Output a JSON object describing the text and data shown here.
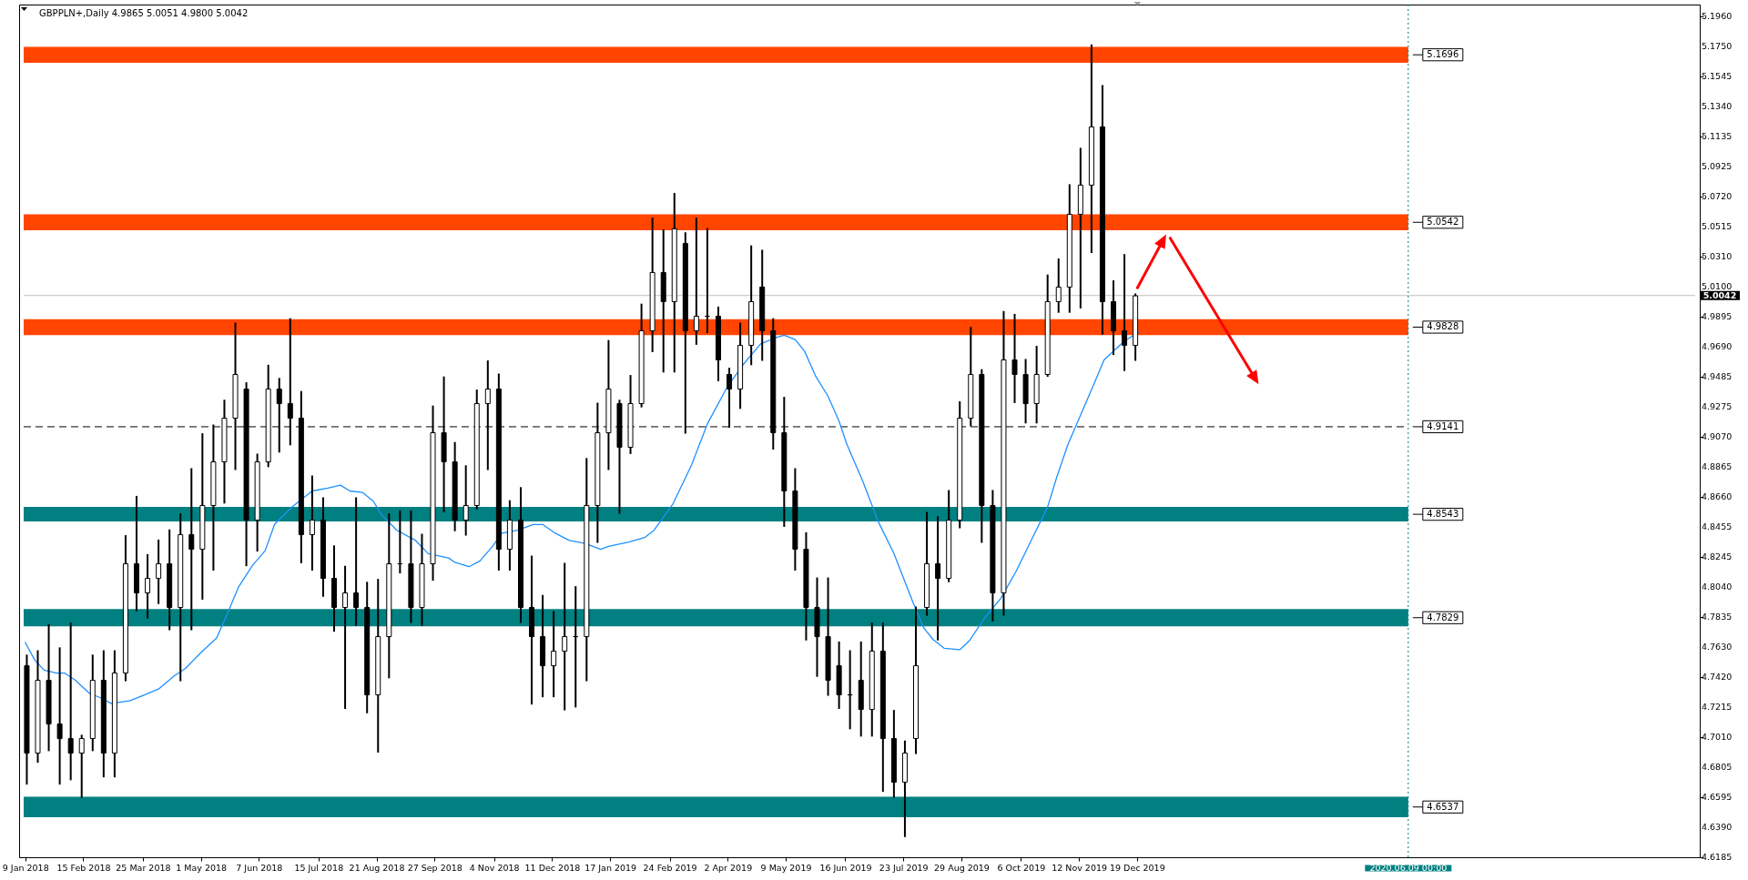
{
  "chart_data": {
    "type": "candlestick",
    "title": "GBPPLN+,Daily 4.9865 5.0051 4.9800 5.0042",
    "color": "#000000",
    "x": [
      "2018-01-10",
      "2018-01-17",
      "2018-01-24",
      "2018-01-31",
      "2018-02-07",
      "2018-02-14",
      "2018-02-21",
      "2018-02-28",
      "2018-03-07",
      "2018-03-14",
      "2018-03-21",
      "2018-03-28",
      "2018-04-04",
      "2018-04-11",
      "2018-04-18",
      "2018-04-25",
      "2018-05-02",
      "2018-05-09",
      "2018-05-16",
      "2018-05-23",
      "2018-05-30",
      "2018-06-06",
      "2018-06-13",
      "2018-06-20",
      "2018-06-27",
      "2018-07-04",
      "2018-07-11",
      "2018-07-18",
      "2018-07-25",
      "2018-08-01",
      "2018-08-08",
      "2018-08-15",
      "2018-08-22",
      "2018-08-29",
      "2018-09-05",
      "2018-09-12",
      "2018-09-19",
      "2018-09-26",
      "2018-10-03",
      "2018-10-10",
      "2018-10-17",
      "2018-10-24",
      "2018-10-31",
      "2018-11-07",
      "2018-11-14",
      "2018-11-21",
      "2018-11-28",
      "2018-12-05",
      "2018-12-12",
      "2018-12-19",
      "2018-12-26",
      "2019-01-02",
      "2019-01-09",
      "2019-01-16",
      "2019-01-23",
      "2019-01-30",
      "2019-02-06",
      "2019-02-13",
      "2019-02-20",
      "2019-02-27",
      "2019-03-06",
      "2019-03-13",
      "2019-03-20",
      "2019-03-27",
      "2019-04-03",
      "2019-04-10",
      "2019-04-17",
      "2019-04-24",
      "2019-05-01",
      "2019-05-08",
      "2019-05-15",
      "2019-05-22",
      "2019-05-29",
      "2019-06-05",
      "2019-06-12",
      "2019-06-19",
      "2019-06-26",
      "2019-07-03",
      "2019-07-10",
      "2019-07-17",
      "2019-07-24",
      "2019-07-31",
      "2019-08-07",
      "2019-08-14",
      "2019-08-21",
      "2019-08-28",
      "2019-09-04",
      "2019-09-11",
      "2019-09-18",
      "2019-09-25",
      "2019-10-02",
      "2019-10-09",
      "2019-10-16",
      "2019-10-23",
      "2019-10-30",
      "2019-11-06",
      "2019-11-13",
      "2019-11-20",
      "2019-11-27",
      "2019-12-04",
      "2019-12-11",
      "2019-12-18"
    ],
    "ohlc": [
      [
        4.75,
        4.757,
        4.669,
        4.69
      ],
      [
        4.69,
        4.76,
        4.684,
        4.74
      ],
      [
        4.74,
        4.778,
        4.692,
        4.71
      ],
      [
        4.71,
        4.762,
        4.669,
        4.7
      ],
      [
        4.7,
        4.779,
        4.672,
        4.69
      ],
      [
        4.69,
        4.702,
        4.66,
        4.7
      ],
      [
        4.7,
        4.757,
        4.692,
        4.74
      ],
      [
        4.74,
        4.76,
        4.674,
        4.69
      ],
      [
        4.69,
        4.76,
        4.674,
        4.745
      ],
      [
        4.745,
        4.839,
        4.74,
        4.82
      ],
      [
        4.82,
        4.866,
        4.788,
        4.8
      ],
      [
        4.8,
        4.826,
        4.783,
        4.81
      ],
      [
        4.81,
        4.836,
        4.793,
        4.82
      ],
      [
        4.82,
        4.843,
        4.775,
        4.79
      ],
      [
        4.79,
        4.854,
        4.74,
        4.84
      ],
      [
        4.84,
        4.885,
        4.775,
        4.83
      ],
      [
        4.83,
        4.909,
        4.796,
        4.86
      ],
      [
        4.86,
        4.915,
        4.816,
        4.89
      ],
      [
        4.89,
        4.932,
        4.862,
        4.92
      ],
      [
        4.92,
        4.985,
        4.885,
        4.95
      ],
      [
        4.94,
        4.944,
        4.819,
        4.85
      ],
      [
        4.85,
        4.895,
        4.829,
        4.89
      ],
      [
        4.89,
        4.956,
        4.887,
        4.94
      ],
      [
        4.94,
        4.947,
        4.897,
        4.93
      ],
      [
        4.93,
        4.988,
        4.902,
        4.92
      ],
      [
        4.92,
        4.938,
        4.821,
        4.84
      ],
      [
        4.84,
        4.88,
        4.816,
        4.85
      ],
      [
        4.85,
        4.865,
        4.798,
        4.81
      ],
      [
        4.81,
        4.832,
        4.774,
        4.79
      ],
      [
        4.79,
        4.818,
        4.721,
        4.8
      ],
      [
        4.8,
        4.865,
        4.778,
        4.79
      ],
      [
        4.79,
        4.807,
        4.718,
        4.73
      ],
      [
        4.73,
        4.809,
        4.691,
        4.77
      ],
      [
        4.77,
        4.854,
        4.742,
        4.82
      ],
      [
        4.82,
        4.856,
        4.814,
        4.82
      ],
      [
        4.82,
        4.856,
        4.78,
        4.79
      ],
      [
        4.79,
        4.84,
        4.778,
        4.82
      ],
      [
        4.82,
        4.928,
        4.809,
        4.91
      ],
      [
        4.91,
        4.948,
        4.856,
        4.89
      ],
      [
        4.89,
        4.903,
        4.843,
        4.85
      ],
      [
        4.85,
        4.887,
        4.84,
        4.86
      ],
      [
        4.86,
        4.939,
        4.858,
        4.93
      ],
      [
        4.93,
        4.959,
        4.885,
        4.94
      ],
      [
        4.94,
        4.95,
        4.816,
        4.83
      ],
      [
        4.83,
        4.863,
        4.816,
        4.85
      ],
      [
        4.85,
        4.872,
        4.78,
        4.79
      ],
      [
        4.79,
        4.825,
        4.724,
        4.77
      ],
      [
        4.77,
        4.798,
        4.729,
        4.75
      ],
      [
        4.75,
        4.787,
        4.729,
        4.76
      ],
      [
        4.76,
        4.82,
        4.72,
        4.77
      ],
      [
        4.77,
        4.804,
        4.722,
        4.77
      ],
      [
        4.77,
        4.892,
        4.74,
        4.86
      ],
      [
        4.86,
        4.93,
        4.835,
        4.91
      ],
      [
        4.91,
        4.973,
        4.885,
        4.94
      ],
      [
        4.93,
        4.932,
        4.855,
        4.9
      ],
      [
        4.9,
        4.949,
        4.896,
        4.93
      ],
      [
        4.93,
        4.998,
        4.928,
        4.98
      ],
      [
        4.98,
        5.057,
        4.966,
        5.02
      ],
      [
        5.02,
        5.049,
        4.952,
        5.0
      ],
      [
        5.0,
        5.074,
        4.952,
        5.05
      ],
      [
        5.04,
        5.047,
        4.91,
        4.98
      ],
      [
        4.98,
        5.057,
        4.971,
        4.99
      ],
      [
        4.99,
        5.05,
        4.979,
        4.99
      ],
      [
        4.99,
        4.996,
        4.946,
        4.96
      ],
      [
        4.95,
        4.954,
        4.914,
        4.94
      ],
      [
        4.94,
        4.985,
        4.927,
        4.97
      ],
      [
        4.97,
        5.038,
        4.957,
        5.0
      ],
      [
        5.01,
        5.035,
        4.96,
        4.98
      ],
      [
        4.98,
        4.988,
        4.899,
        4.91
      ],
      [
        4.91,
        4.934,
        4.846,
        4.87
      ],
      [
        4.87,
        4.885,
        4.816,
        4.83
      ],
      [
        4.83,
        4.841,
        4.768,
        4.79
      ],
      [
        4.79,
        4.81,
        4.743,
        4.77
      ],
      [
        4.77,
        4.81,
        4.73,
        4.74
      ],
      [
        4.75,
        4.766,
        4.721,
        4.73
      ],
      [
        4.73,
        4.76,
        4.707,
        4.73
      ],
      [
        4.74,
        4.766,
        4.702,
        4.72
      ],
      [
        4.72,
        4.779,
        4.702,
        4.76
      ],
      [
        4.76,
        4.779,
        4.664,
        4.7
      ],
      [
        4.7,
        4.719,
        4.66,
        4.67
      ],
      [
        4.67,
        4.698,
        4.633,
        4.69
      ],
      [
        4.7,
        4.79,
        4.69,
        4.75
      ],
      [
        4.79,
        4.855,
        4.785,
        4.82
      ],
      [
        4.82,
        4.852,
        4.768,
        4.81
      ],
      [
        4.81,
        4.87,
        4.808,
        4.85
      ],
      [
        4.85,
        4.931,
        4.845,
        4.92
      ],
      [
        4.92,
        4.982,
        4.915,
        4.95
      ],
      [
        4.95,
        4.953,
        4.835,
        4.86
      ],
      [
        4.86,
        4.87,
        4.781,
        4.8
      ],
      [
        4.8,
        4.993,
        4.785,
        4.96
      ],
      [
        4.96,
        4.991,
        4.931,
        4.95
      ],
      [
        4.95,
        4.96,
        4.917,
        4.93
      ],
      [
        4.93,
        4.969,
        4.917,
        4.95
      ],
      [
        4.95,
        5.018,
        4.949,
        5.0
      ],
      [
        5.0,
        5.029,
        4.993,
        5.01
      ],
      [
        5.01,
        5.08,
        4.993,
        5.06
      ],
      [
        5.06,
        5.105,
        4.996,
        5.08
      ],
      [
        5.08,
        5.176,
        5.034,
        5.12
      ],
      [
        5.12,
        5.148,
        4.978,
        5.0
      ],
      [
        5.0,
        5.014,
        4.964,
        4.98
      ],
      [
        4.98,
        5.032,
        4.953,
        4.97
      ],
      [
        4.97,
        5.005,
        4.96,
        5.004
      ]
    ],
    "series": [
      {
        "type": "line",
        "color": "#1e90ff",
        "x": [
          "2018-01-09",
          "2018-01-15",
          "2018-01-21",
          "2018-01-29",
          "2018-02-03",
          "2018-02-10",
          "2018-02-19",
          "2018-02-26",
          "2018-03-05",
          "2018-03-17",
          "2018-03-26",
          "2018-04-04",
          "2018-04-14",
          "2018-04-21",
          "2018-05-02",
          "2018-05-11",
          "2018-05-18",
          "2018-05-25",
          "2018-06-03",
          "2018-06-11",
          "2018-06-17",
          "2018-06-27",
          "2018-07-04",
          "2018-07-11",
          "2018-07-21",
          "2018-07-29",
          "2018-08-04",
          "2018-08-12",
          "2018-08-19",
          "2018-08-24",
          "2018-09-03",
          "2018-09-15",
          "2018-09-23",
          "2018-10-06",
          "2018-10-10",
          "2018-10-19",
          "2018-10-26",
          "2018-11-03",
          "2018-11-09",
          "2018-11-19",
          "2018-11-29",
          "2018-12-05",
          "2018-12-13",
          "2018-12-22",
          "2019-01-01",
          "2019-01-11",
          "2019-01-16",
          "2019-01-29",
          "2019-02-08",
          "2019-02-14",
          "2019-02-26",
          "2019-03-10",
          "2019-03-20",
          "2019-04-02",
          "2019-04-12",
          "2019-04-23",
          "2019-05-02",
          "2019-05-08",
          "2019-05-15",
          "2019-05-21",
          "2019-05-28",
          "2019-06-05",
          "2019-06-12",
          "2019-06-17",
          "2019-06-27",
          "2019-07-07",
          "2019-07-17",
          "2019-07-29",
          "2019-08-05",
          "2019-08-11",
          "2019-08-18",
          "2019-08-28",
          "2019-09-03",
          "2019-09-13",
          "2019-09-23",
          "2019-10-03",
          "2019-10-13",
          "2019-10-23",
          "2019-10-29",
          "2019-11-05",
          "2019-11-13",
          "2019-11-21",
          "2019-11-28",
          "2019-12-05",
          "2019-12-11",
          "2019-12-20"
        ],
        "values": [
          4.766,
          4.754,
          4.747,
          4.745,
          4.745,
          4.74,
          4.731,
          4.728,
          4.724,
          4.726,
          4.73,
          4.734,
          4.743,
          4.748,
          4.76,
          4.769,
          4.786,
          4.804,
          4.819,
          4.829,
          4.847,
          4.858,
          4.864,
          4.87,
          4.872,
          4.874,
          4.87,
          4.869,
          4.863,
          4.854,
          4.843,
          4.836,
          4.827,
          4.824,
          4.821,
          4.818,
          4.822,
          4.832,
          4.841,
          4.843,
          4.847,
          4.847,
          4.841,
          4.836,
          4.834,
          4.83,
          4.832,
          4.835,
          4.838,
          4.843,
          4.861,
          4.888,
          4.916,
          4.942,
          4.957,
          4.971,
          4.975,
          4.977,
          4.974,
          4.966,
          4.949,
          4.935,
          4.918,
          4.902,
          4.877,
          4.849,
          4.827,
          4.794,
          4.776,
          4.768,
          4.762,
          4.761,
          4.767,
          4.783,
          4.796,
          4.815,
          4.837,
          4.859,
          4.88,
          4.902,
          4.922,
          4.942,
          4.96,
          4.967,
          4.973,
          4.979
        ]
      }
    ],
    "xlim": [
      "2018-01-08",
      "2020-12-09"
    ],
    "xticks": [
      {
        "value": "2018-01-09",
        "label": "9 Jan 2018"
      },
      {
        "value": "2018-02-15",
        "label": "15 Feb 2018"
      },
      {
        "value": "2018-03-25",
        "label": "25 Mar 2018"
      },
      {
        "value": "2018-05-01",
        "label": "1 May 2018"
      },
      {
        "value": "2018-06-07",
        "label": "7 Jun 2018"
      },
      {
        "value": "2018-07-15",
        "label": "15 Jul 2018"
      },
      {
        "value": "2018-08-21",
        "label": "21 Aug 2018"
      },
      {
        "value": "2018-09-27",
        "label": "27 Sep 2018"
      },
      {
        "value": "2018-11-04",
        "label": "4 Nov 2018"
      },
      {
        "value": "2018-12-11",
        "label": "11 Dec 2018"
      },
      {
        "value": "2019-01-17",
        "label": "17 Jan 2019"
      },
      {
        "value": "2019-02-24",
        "label": "24 Feb 2019"
      },
      {
        "value": "2019-04-02",
        "label": "2 Apr 2019"
      },
      {
        "value": "2019-05-09",
        "label": "9 May 2019"
      },
      {
        "value": "2019-06-16",
        "label": "16 Jun 2019"
      },
      {
        "value": "2019-07-23",
        "label": "23 Jul 2019"
      },
      {
        "value": "2019-08-29",
        "label": "29 Aug 2019"
      },
      {
        "value": "2019-10-06",
        "label": "6 Oct 2019"
      },
      {
        "value": "2019-11-12",
        "label": "12 Nov 2019"
      },
      {
        "value": "2019-12-19",
        "label": "19 Dec 2019"
      }
    ],
    "ylim": [
      4.6185,
      5.204
    ],
    "yticks": [
      {
        "value": 5.196,
        "label": "5.1960"
      },
      {
        "value": 5.175,
        "label": "5.1750"
      },
      5.1545,
      {
        "value": 5.134,
        "label": "5.1340"
      },
      5.1135,
      5.0925,
      {
        "value": 5.072,
        "label": "5.0720"
      },
      5.0515,
      {
        "value": 5.031,
        "label": "5.0310"
      },
      {
        "value": 5.01,
        "label": "5.0100"
      },
      4.9895,
      {
        "value": 4.969,
        "label": "4.9690"
      },
      4.9485,
      4.9275,
      {
        "value": 4.907,
        "label": "4.9070"
      },
      4.8865,
      {
        "value": 4.866,
        "label": "4.8660"
      },
      4.8455,
      4.8245,
      {
        "value": 4.804,
        "label": "4.8040"
      },
      4.7835,
      {
        "value": 4.763,
        "label": "4.7630"
      },
      {
        "value": 4.742,
        "label": "4.7420"
      },
      4.7215,
      {
        "value": 4.701,
        "label": "4.7010"
      },
      4.6805,
      4.6595,
      {
        "value": 4.639,
        "label": "4.6390"
      },
      4.6185
    ],
    "bands": [
      {
        "axis": "y",
        "from": 5.164,
        "to": 5.175,
        "label": "5.1696",
        "color": "#ff4500"
      },
      {
        "axis": "y",
        "from": 5.049,
        "to": 5.06,
        "label": "5.0542",
        "color": "#ff4500"
      },
      {
        "axis": "y",
        "from": 4.977,
        "to": 4.988,
        "label": "4.9828",
        "color": "#ff4500"
      },
      {
        "axis": "y",
        "from": 4.849,
        "to": 4.859,
        "label": "4.8543",
        "color": "#008080"
      },
      {
        "axis": "y",
        "from": 4.777,
        "to": 4.789,
        "label": "4.7829",
        "color": "#008080"
      },
      {
        "axis": "y",
        "from": 4.646,
        "to": 4.66,
        "label": "4.6537",
        "color": "#008080"
      }
    ],
    "ref_lines": [
      {
        "axis": "y",
        "value": 5.0042,
        "label": "5.0042",
        "color": "#c0c0c0"
      },
      {
        "axis": "y",
        "value": 4.9141,
        "label": "4.9141",
        "color": "#000000",
        "line_style": "dashed"
      },
      {
        "axis": "x",
        "value": "2020-06-09",
        "label": "2020.06.09 00:00",
        "color": "#008080",
        "line_style": "dotted"
      }
    ]
  }
}
